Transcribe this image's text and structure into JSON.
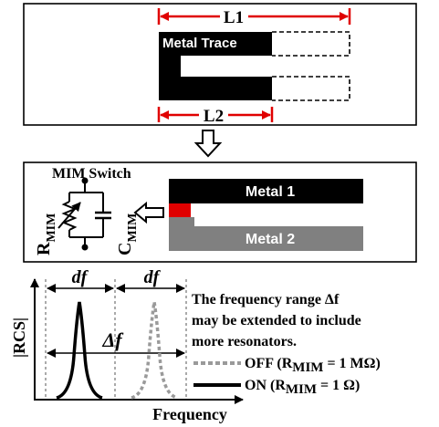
{
  "top": {
    "l1_label": "L1",
    "l2_label": "L2",
    "trace_label": "Metal Trace"
  },
  "middle": {
    "switch_title": "MIM Switch",
    "r_label": "R",
    "r_sub": "MIM",
    "c_label": "C",
    "c_sub": "MIM",
    "metal1_label": "Metal 1",
    "metal2_label": "Metal 2"
  },
  "bottom": {
    "ylabel": "|RCS|",
    "xlabel": "Frequency",
    "df1": "df",
    "df2": "df",
    "delta_f": "Δf",
    "note_lines": [
      "The frequency range Δf",
      "may be extended to include",
      "more resonators."
    ],
    "legend_off": {
      "prefix": "OFF (R",
      "sub": "MIM",
      "suffix": " = 1 MΩ)"
    },
    "legend_on": {
      "prefix": "ON (R",
      "sub": "MIM",
      "suffix": " = 1 Ω)"
    }
  },
  "colors": {
    "metal1": "#000000",
    "metal2": "#808080",
    "contact": "#e00000",
    "measure": "#e00000"
  }
}
